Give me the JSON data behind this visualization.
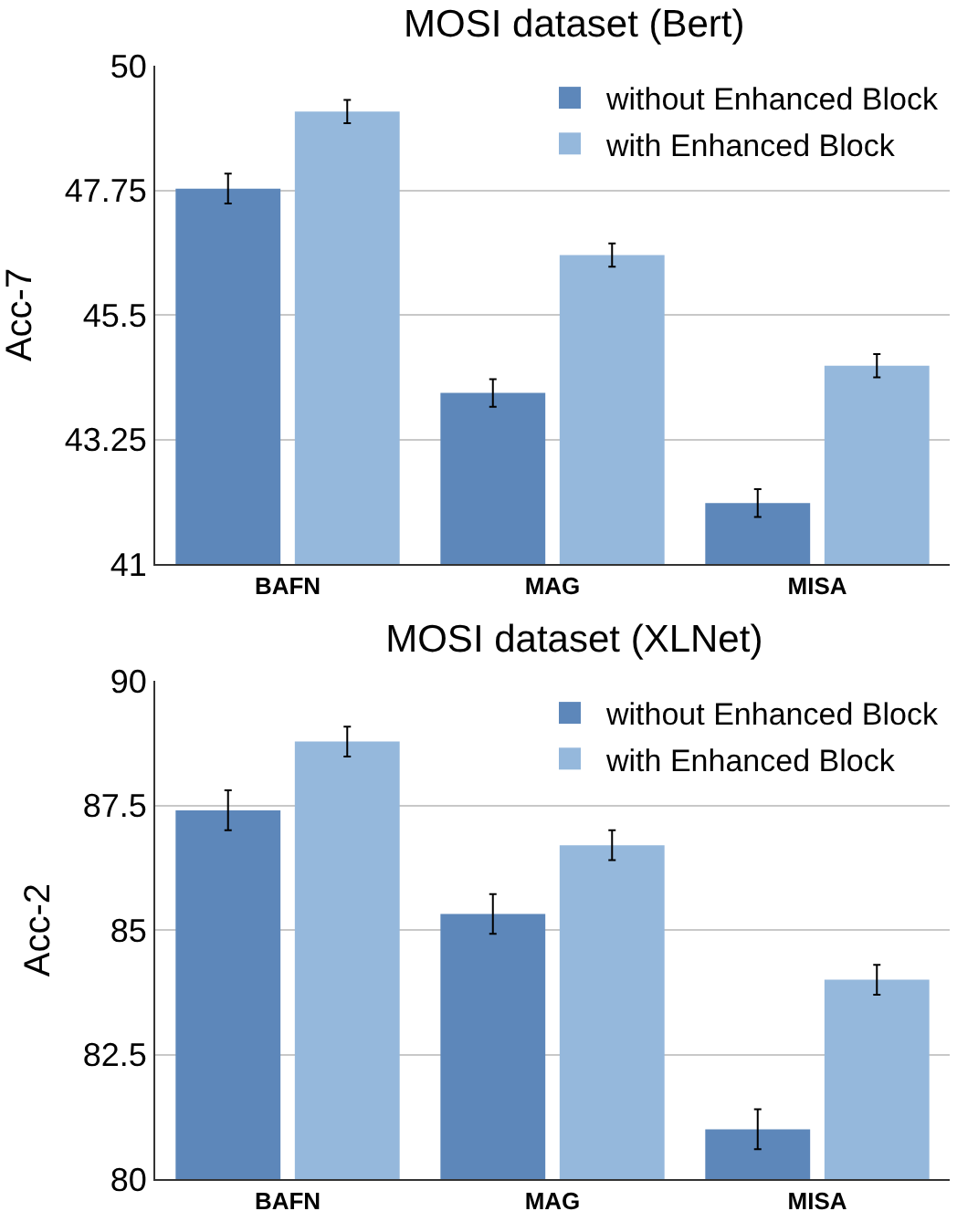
{
  "chart_data": [
    {
      "type": "bar",
      "title": "MOSI dataset (Bert)",
      "ylabel": "Acc-7",
      "categories": [
        "BAFN",
        "MAG",
        "MISA"
      ],
      "series": [
        {
          "name": "without Enhanced Block",
          "color": "#5d87ba",
          "values": [
            47.78,
            44.09,
            42.1
          ],
          "errors": [
            0.27,
            0.25,
            0.25
          ]
        },
        {
          "name": "with Enhanced Block",
          "color": "#95b8dc",
          "values": [
            49.17,
            46.58,
            44.58
          ],
          "errors": [
            0.21,
            0.21,
            0.21
          ]
        }
      ],
      "ylim": [
        41,
        50
      ],
      "yticks": [
        41,
        43.25,
        45.5,
        47.75,
        50
      ],
      "grid": "y",
      "legend": "top right"
    },
    {
      "type": "bar",
      "title": "MOSI dataset (XLNet)",
      "ylabel": "Acc-2",
      "categories": [
        "BAFN",
        "MAG",
        "MISA"
      ],
      "series": [
        {
          "name": "without Enhanced Block",
          "color": "#5d87ba",
          "values": [
            87.4,
            85.32,
            81.0
          ],
          "errors": [
            0.4,
            0.4,
            0.4
          ]
        },
        {
          "name": "with Enhanced Block",
          "color": "#95b8dc",
          "values": [
            88.78,
            86.7,
            84.0
          ],
          "errors": [
            0.3,
            0.3,
            0.3
          ]
        }
      ],
      "ylim": [
        80,
        90
      ],
      "yticks": [
        80,
        82.5,
        85,
        87.5,
        90
      ],
      "grid": "y",
      "legend": "top right"
    }
  ]
}
